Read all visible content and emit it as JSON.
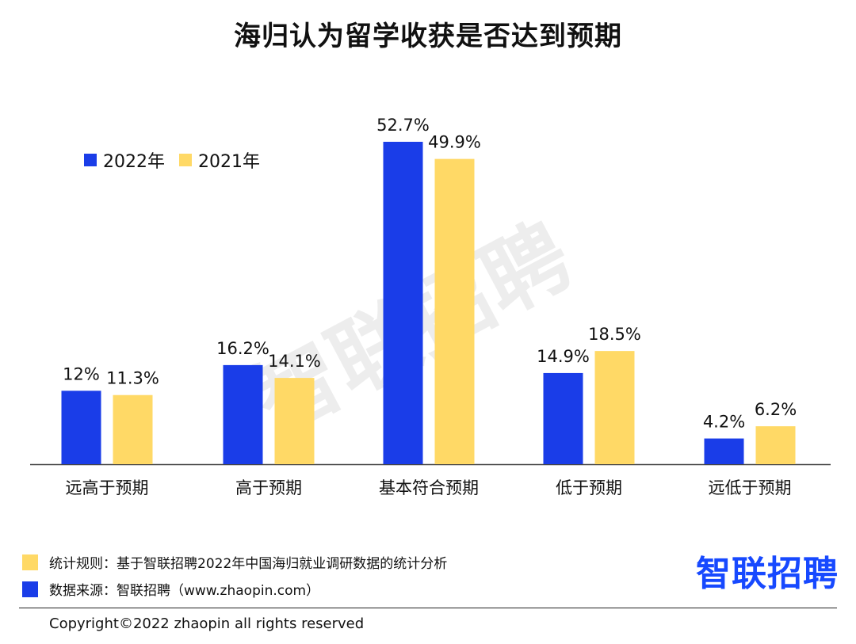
{
  "title": "海归认为留学收获是否达到预期",
  "legend": [
    {
      "label": "2022年",
      "color": "#1a3de8"
    },
    {
      "label": "2021年",
      "color": "#ffd966"
    }
  ],
  "chart_data": {
    "type": "bar",
    "title": "海归认为留学收获是否达到预期",
    "categories": [
      "远高于预期",
      "高于预期",
      "基本符合预期",
      "低于预期",
      "远低于预期"
    ],
    "series": [
      {
        "name": "2022年",
        "color": "#1a3de8",
        "values": [
          12,
          16.2,
          52.7,
          14.9,
          4.2
        ],
        "labels": [
          "12%",
          "16.2%",
          "52.7%",
          "14.9%",
          "4.2%"
        ]
      },
      {
        "name": "2021年",
        "color": "#ffd966",
        "values": [
          11.3,
          14.1,
          49.9,
          18.5,
          6.2
        ],
        "labels": [
          "11.3%",
          "14.1%",
          "49.9%",
          "18.5%",
          "6.2%"
        ]
      }
    ],
    "ylim": [
      0,
      52.7
    ],
    "grid": false,
    "legend_position": "top-left"
  },
  "watermark": "智联招聘",
  "footer": {
    "rule_label": "统计规则：基于智联招聘2022年中国海归就业调研数据的统计分析",
    "source_label": "数据来源：智联招聘（www.zhaopin.com）",
    "rule_color": "#ffd966",
    "source_color": "#1a3de8",
    "brand": "智联招聘",
    "brand_color": "#1749ff",
    "copyright": "Copyright©2022 zhaopin all rights reserved"
  }
}
